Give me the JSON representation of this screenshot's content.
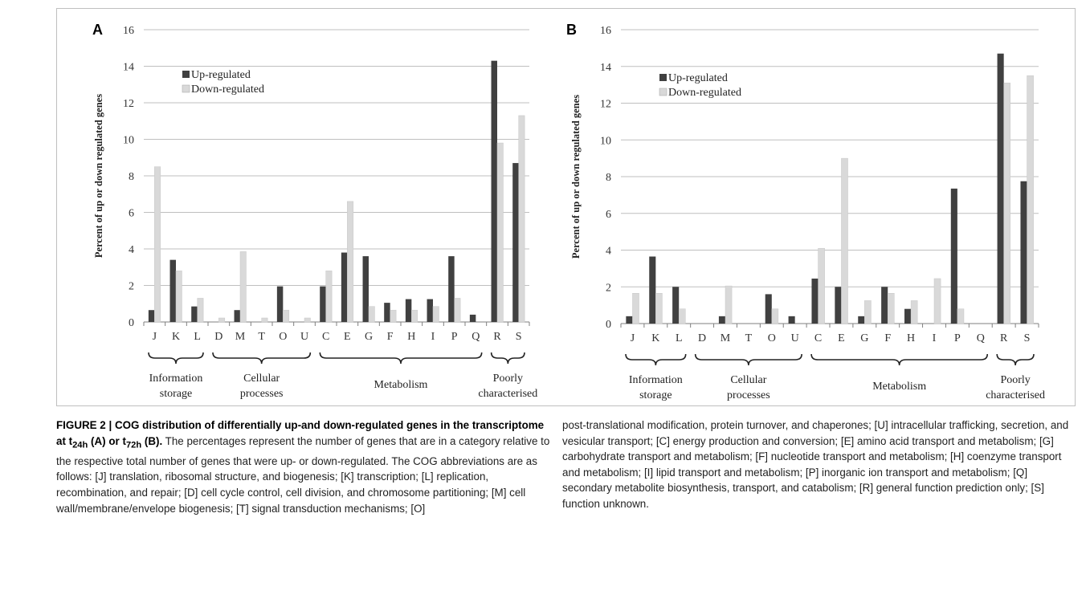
{
  "caption": {
    "figure_label": "FIGURE 2 | COG distribution of differentially up-and down-regulated genes in the transcriptome at t",
    "sub1": "24h",
    "mid": " (A) or t",
    "sub2": "72h",
    "end": " (B).",
    "text_left": " The percentages represent the number of genes that are in a category relative to the respective total number of genes that were up- or down-regulated. The COG abbreviations are as follows: [J] translation, ribosomal structure, and biogenesis; [K] transcription; [L] replication, recombination, and repair; [D] cell cycle control, cell division, and chromosome partitioning; [M] cell wall/membrane/envelope biogenesis; [T] signal transduction mechanisms; [O]",
    "text_right": "post-translational modification, protein turnover, and chaperones; [U] intracellular trafficking, secretion, and vesicular transport; [C] energy production and conversion; [E] amino acid transport and metabolism; [G] carbohydrate transport and metabolism; [F] nucleotide transport and metabolism; [H] coenzyme transport and metabolism; [I] lipid transport and metabolism; [P] inorganic ion transport and metabolism; [Q] secondary metabolite biosynthesis, transport, and catabolism; [R] general function prediction only; [S] function unknown."
  },
  "colors": {
    "up": "#404040",
    "down": "#d9d9d9",
    "grid": "#bfbfbf",
    "axis": "#7f7f7f"
  },
  "chart_data": [
    {
      "panel": "A",
      "type": "bar",
      "ylabel": "Percent of up or down regulated genes",
      "ylim": [
        0,
        16
      ],
      "yticks": [
        0,
        2,
        4,
        6,
        8,
        10,
        12,
        14,
        16
      ],
      "grid": true,
      "legend_position": "top-left",
      "categories": [
        "J",
        "K",
        "L",
        "D",
        "M",
        "T",
        "O",
        "U",
        "C",
        "E",
        "G",
        "F",
        "H",
        "I",
        "P",
        "Q",
        "R",
        "S"
      ],
      "series": [
        {
          "name": "Up-regulated",
          "values": [
            0.65,
            3.4,
            0.85,
            0,
            0.65,
            0,
            1.95,
            0,
            1.95,
            3.8,
            3.6,
            1.05,
            1.25,
            1.25,
            3.6,
            0.4,
            14.3,
            8.7
          ]
        },
        {
          "name": "Down-regulated",
          "values": [
            8.5,
            2.8,
            1.3,
            0.22,
            3.85,
            0.22,
            0.65,
            0.22,
            2.8,
            6.6,
            0.85,
            0.65,
            0.65,
            0.85,
            1.3,
            0,
            9.8,
            11.3
          ]
        }
      ],
      "groups": [
        {
          "label": [
            "Information",
            "storage"
          ],
          "from": "J",
          "to": "L"
        },
        {
          "label": [
            "Cellular",
            "processes"
          ],
          "from": "D",
          "to": "U"
        },
        {
          "label": [
            "Metabolism"
          ],
          "from": "C",
          "to": "Q"
        },
        {
          "label": [
            "Poorly",
            "characterised"
          ],
          "from": "R",
          "to": "S"
        }
      ]
    },
    {
      "panel": "B",
      "type": "bar",
      "ylabel": "Percent of up or down regulated genes",
      "ylim": [
        0,
        16
      ],
      "yticks": [
        0,
        2,
        4,
        6,
        8,
        10,
        12,
        14,
        16
      ],
      "grid": true,
      "legend_position": "top-left",
      "categories": [
        "J",
        "K",
        "L",
        "D",
        "M",
        "T",
        "O",
        "U",
        "C",
        "E",
        "G",
        "F",
        "H",
        "I",
        "P",
        "Q",
        "R",
        "S"
      ],
      "series": [
        {
          "name": "Up-regulated",
          "values": [
            0.4,
            3.65,
            2.0,
            0,
            0.4,
            0,
            1.6,
            0.4,
            2.45,
            2.0,
            0.4,
            2.0,
            0.8,
            0,
            7.35,
            0,
            14.7,
            7.75
          ]
        },
        {
          "name": "Down-regulated",
          "values": [
            1.65,
            1.65,
            0.8,
            0,
            2.05,
            0,
            0.8,
            0,
            4.1,
            9.0,
            1.25,
            1.65,
            1.25,
            2.45,
            0.8,
            0,
            13.1,
            13.5
          ]
        }
      ],
      "groups": [
        {
          "label": [
            "Information",
            "storage"
          ],
          "from": "J",
          "to": "L"
        },
        {
          "label": [
            "Cellular",
            "processes"
          ],
          "from": "D",
          "to": "U"
        },
        {
          "label": [
            "Metabolism"
          ],
          "from": "C",
          "to": "Q"
        },
        {
          "label": [
            "Poorly",
            "characterised"
          ],
          "from": "R",
          "to": "S"
        }
      ]
    }
  ]
}
